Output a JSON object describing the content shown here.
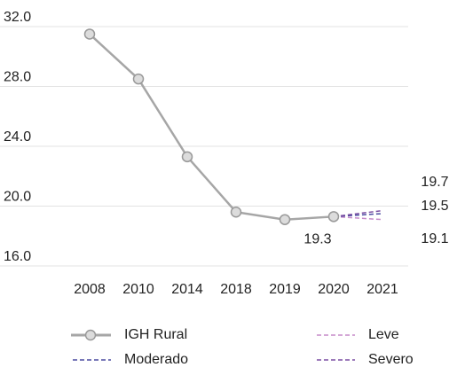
{
  "chart_data": {
    "type": "line",
    "categories": [
      "2008",
      "2010",
      "2014",
      "2018",
      "2019",
      "2020",
      "2021"
    ],
    "series": [
      {
        "name": "IGH Rural",
        "color": "#a6a6a6",
        "values": [
          31.5,
          28.5,
          23.3,
          19.6,
          19.1,
          19.3,
          null
        ]
      },
      {
        "name": "Leve",
        "color": "#c58ac9",
        "values": [
          null,
          null,
          null,
          null,
          null,
          19.3,
          19.1
        ]
      },
      {
        "name": "Moderado",
        "color": "#4b4ba0",
        "values": [
          null,
          null,
          null,
          null,
          null,
          19.3,
          19.5
        ]
      },
      {
        "name": "Severo",
        "color": "#7b4fa3",
        "values": [
          null,
          null,
          null,
          null,
          null,
          19.3,
          19.7
        ]
      }
    ],
    "ylim": [
      16,
      32
    ],
    "yticks": [
      {
        "value": 16,
        "label": "16.0"
      },
      {
        "value": 20,
        "label": "20.0"
      },
      {
        "value": 24,
        "label": "24.0"
      },
      {
        "value": 28,
        "label": "28.0"
      },
      {
        "value": 32,
        "label": "32.0"
      }
    ],
    "grid": true
  }
}
